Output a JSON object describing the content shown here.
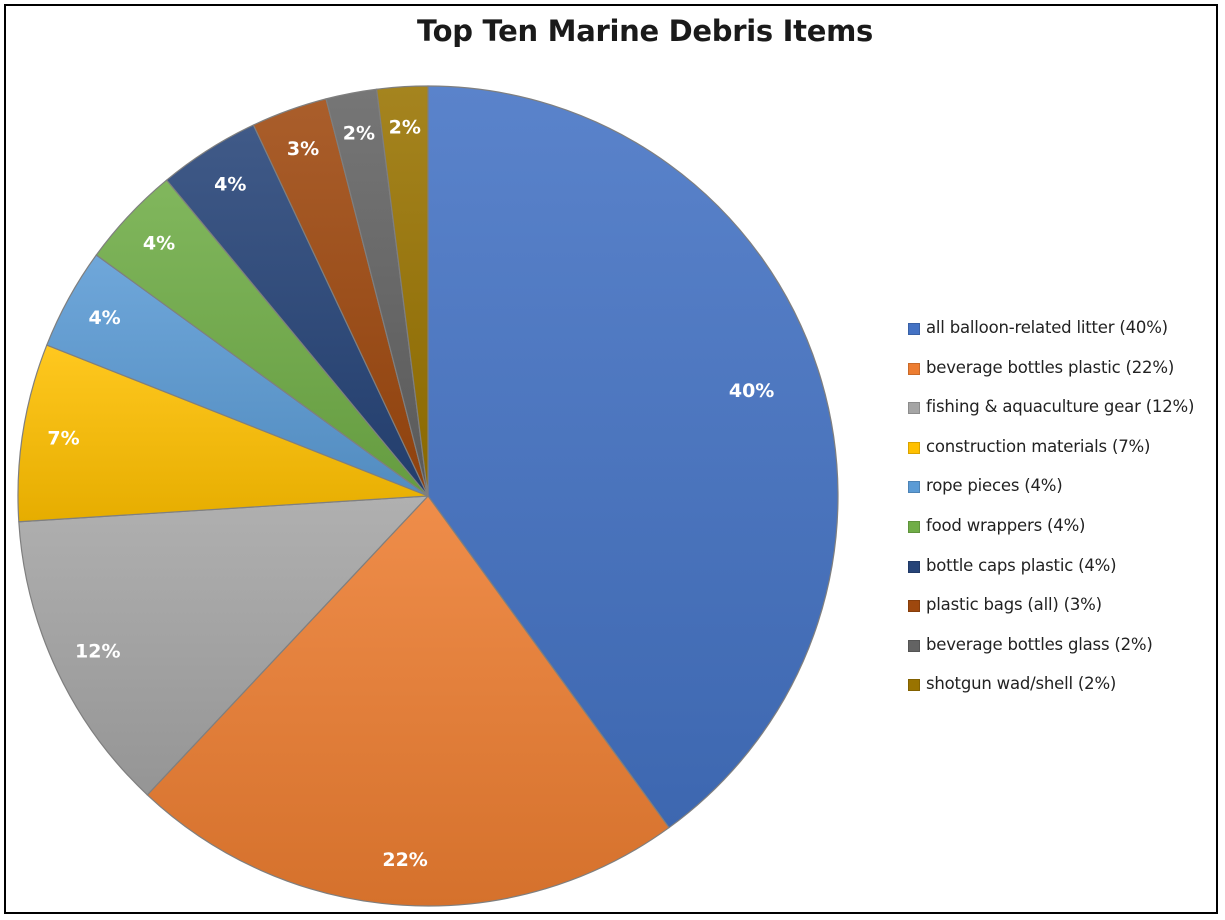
{
  "chart_data": {
    "type": "pie",
    "title": "Top Ten Marine Debris Items",
    "legend_position": "right",
    "slices": [
      {
        "label": "all balloon-related litter (40%)",
        "value": 40,
        "value_label": "40%",
        "color": "#4472C4"
      },
      {
        "label": "beverage bottles plastic (22%)",
        "value": 22,
        "value_label": "22%",
        "color": "#ED7D31"
      },
      {
        "label": "fishing & aquaculture gear (12%)",
        "value": 12,
        "value_label": "12%",
        "color": "#A5A5A5"
      },
      {
        "label": "construction materials (7%)",
        "value": 7,
        "value_label": "7%",
        "color": "#FFC000"
      },
      {
        "label": "rope pieces (4%)",
        "value": 4,
        "value_label": "4%",
        "color": "#5B9BD5"
      },
      {
        "label": "food wrappers (4%)",
        "value": 4,
        "value_label": "4%",
        "color": "#70AD47"
      },
      {
        "label": "bottle caps plastic (4%)",
        "value": 4,
        "value_label": "4%",
        "color": "#264478"
      },
      {
        "label": "plastic bags (all) (3%)",
        "value": 3,
        "value_label": "3%",
        "color": "#9E480E"
      },
      {
        "label": "beverage bottles glass (2%)",
        "value": 2,
        "value_label": "2%",
        "color": "#636363"
      },
      {
        "label": "shotgun wad/shell (2%)",
        "value": 2,
        "value_label": "2%",
        "color": "#997300"
      }
    ]
  }
}
